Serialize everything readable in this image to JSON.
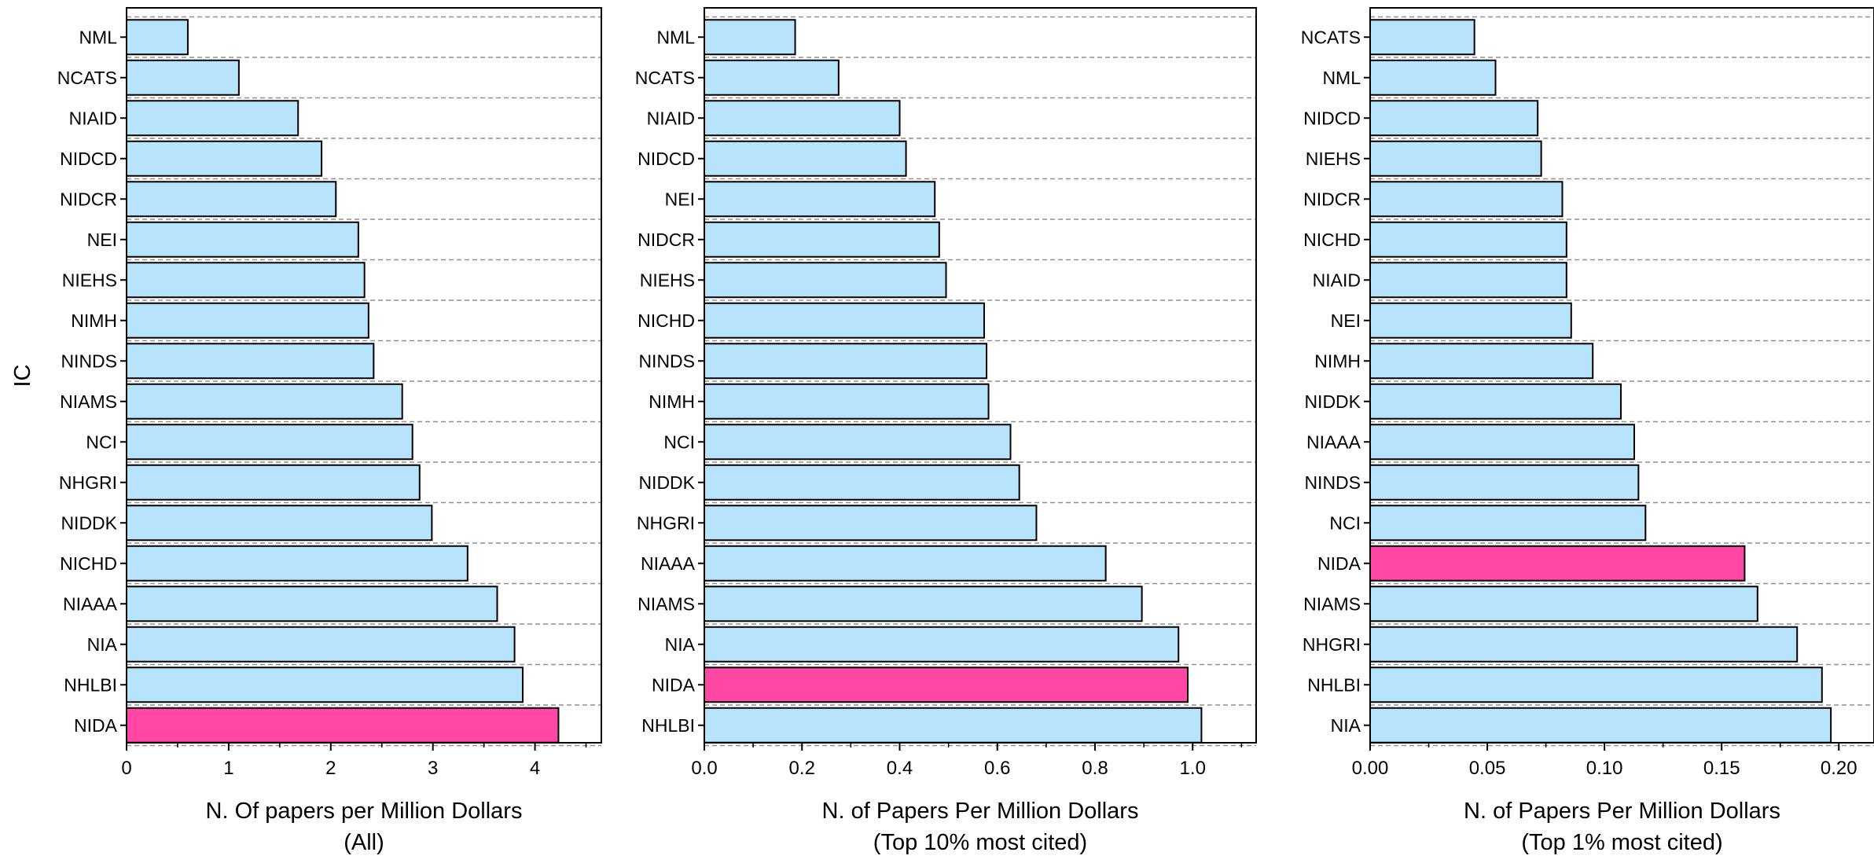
{
  "colors": {
    "bar": "#b7e3fb",
    "highlight": "#ff47a3",
    "edge": "#000000",
    "grid": "#8f8f8f"
  },
  "chart_data": [
    {
      "type": "bar",
      "orientation": "horizontal",
      "ylabel": "IC",
      "xlabel": "N. Of papers per Million Dollars",
      "xlabel2": "(All)",
      "xlim": [
        0,
        4.65
      ],
      "xticks": [
        "0",
        "1",
        "2",
        "3",
        "4"
      ],
      "xtick_values": [
        0,
        1,
        2,
        3,
        4
      ],
      "highlight": "NIDA",
      "grid": "horizontal dashed",
      "categories": [
        "NML",
        "NCATS",
        "NIAID",
        "NIDCD",
        "NIDCR",
        "NEI",
        "NIEHS",
        "NIMH",
        "NINDS",
        "NIAMS",
        "NCI",
        "NHGRI",
        "NIDDK",
        "NICHD",
        "NIAAA",
        "NIA",
        "NHLBI",
        "NIDA"
      ],
      "values": [
        0.6,
        1.1,
        1.68,
        1.91,
        2.05,
        2.27,
        2.33,
        2.37,
        2.42,
        2.7,
        2.8,
        2.87,
        2.99,
        3.34,
        3.63,
        3.8,
        3.88,
        4.23
      ]
    },
    {
      "type": "bar",
      "orientation": "horizontal",
      "ylabel": "",
      "xlabel": "N. of Papers Per Million Dollars",
      "xlabel2": "(Top 10% most cited)",
      "xlim": [
        0,
        1.13
      ],
      "xticks": [
        "0.0",
        "0.2",
        "0.4",
        "0.6",
        "0.8",
        "1.0"
      ],
      "xtick_values": [
        0,
        0.2,
        0.4,
        0.6,
        0.8,
        1.0
      ],
      "highlight": "NIDA",
      "grid": "horizontal dashed",
      "categories": [
        "NML",
        "NCATS",
        "NIAID",
        "NIDCD",
        "NEI",
        "NIDCR",
        "NIEHS",
        "NICHD",
        "NINDS",
        "NIMH",
        "NCI",
        "NIDDK",
        "NHGRI",
        "NIAAA",
        "NIAMS",
        "NIA",
        "NIDA",
        "NHLBI"
      ],
      "values": [
        0.186,
        0.275,
        0.4,
        0.413,
        0.472,
        0.481,
        0.495,
        0.573,
        0.578,
        0.582,
        0.627,
        0.645,
        0.68,
        0.822,
        0.896,
        0.971,
        0.99,
        1.018
      ]
    },
    {
      "type": "bar",
      "orientation": "horizontal",
      "ylabel": "",
      "xlabel": "N. of Papers Per Million Dollars",
      "xlabel2": "(Top 1% most cited)",
      "xlim": [
        0,
        0.215
      ],
      "xticks": [
        "0.00",
        "0.05",
        "0.10",
        "0.15",
        "0.20"
      ],
      "xtick_values": [
        0,
        0.05,
        0.1,
        0.15,
        0.2
      ],
      "highlight": "NIDA",
      "grid": "horizontal dashed",
      "categories": [
        "NCATS",
        "NML",
        "NIDCD",
        "NIEHS",
        "NIDCR",
        "NICHD",
        "NIAID",
        "NEI",
        "NIMH",
        "NIDDK",
        "NIAAA",
        "NINDS",
        "NCI",
        "NIDA",
        "NIAMS",
        "NHGRI",
        "NHLBI",
        "NIA"
      ],
      "values": [
        0.0445,
        0.0535,
        0.0715,
        0.073,
        0.082,
        0.0838,
        0.0838,
        0.0858,
        0.095,
        0.107,
        0.1127,
        0.1145,
        0.1175,
        0.1598,
        0.1653,
        0.1822,
        0.1928,
        0.1966
      ]
    }
  ]
}
